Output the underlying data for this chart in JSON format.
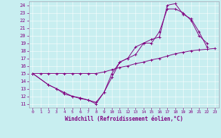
{
  "xlabel": "Windchill (Refroidissement éolien,°C)",
  "bg_color": "#c8eef0",
  "line_color": "#800080",
  "xlim": [
    -0.5,
    23.5
  ],
  "ylim": [
    10.5,
    24.5
  ],
  "xticks": [
    0,
    1,
    2,
    3,
    4,
    5,
    6,
    7,
    8,
    9,
    10,
    11,
    12,
    13,
    14,
    15,
    16,
    17,
    18,
    19,
    20,
    21,
    22,
    23
  ],
  "yticks": [
    11,
    12,
    13,
    14,
    15,
    16,
    17,
    18,
    19,
    20,
    21,
    22,
    23,
    24
  ],
  "line1_x": [
    0,
    1,
    2,
    3,
    4,
    5,
    6,
    7,
    8,
    9,
    10,
    11,
    12,
    13,
    14,
    15,
    16,
    17,
    18,
    19,
    20,
    21,
    22,
    23
  ],
  "line1_y": [
    15,
    15,
    15,
    15,
    15,
    15,
    15,
    15,
    15,
    15.2,
    15.5,
    15.8,
    16.0,
    16.3,
    16.5,
    16.8,
    17.0,
    17.3,
    17.6,
    17.8,
    18.0,
    18.1,
    18.2,
    18.3
  ],
  "line2_x": [
    0,
    2,
    3,
    4,
    5,
    6,
    7,
    8,
    9,
    10,
    11,
    12,
    13,
    14,
    15,
    16,
    17,
    18,
    19,
    20,
    21,
    22
  ],
  "line2_y": [
    15,
    13.5,
    13.0,
    12.5,
    12.0,
    11.8,
    11.5,
    11.0,
    12.5,
    14.5,
    16.5,
    17.0,
    17.5,
    19.0,
    19.0,
    20.5,
    23.5,
    23.5,
    23.0,
    22.0,
    20.0,
    19.0
  ],
  "line3_x": [
    0,
    2,
    3,
    4,
    5,
    6,
    7,
    8,
    9,
    10,
    11,
    12,
    13,
    14,
    15,
    16,
    17,
    18,
    19,
    20,
    21,
    22
  ],
  "line3_y": [
    15,
    13.5,
    13.0,
    12.3,
    12.0,
    11.7,
    11.5,
    11.2,
    12.5,
    15.0,
    16.5,
    17.0,
    18.5,
    19.0,
    19.5,
    19.8,
    24.0,
    24.2,
    22.8,
    22.2,
    20.5,
    18.5
  ]
}
